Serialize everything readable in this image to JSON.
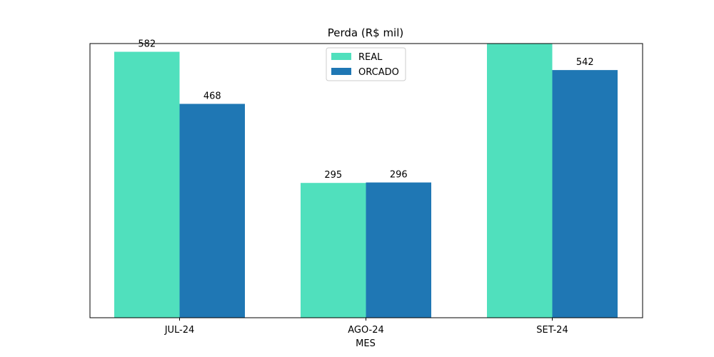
{
  "chart_data": {
    "type": "bar",
    "title": "Perda (R$ mil)",
    "xlabel": "MES",
    "ylabel": "",
    "categories": [
      "JUL-24",
      "AGO-24",
      "SET-24"
    ],
    "series": [
      {
        "name": "REAL",
        "values": [
          582,
          295,
          630
        ],
        "labels": [
          "582",
          "295",
          ""
        ],
        "color": "#50e0bd"
      },
      {
        "name": "ORCADO",
        "values": [
          468,
          296,
          542
        ],
        "labels": [
          "468",
          "296",
          "542"
        ],
        "color": "#1f77b4"
      }
    ],
    "ylim": [
      0,
      600
    ],
    "y_axis_visible": false,
    "grid": false,
    "legend_position": "top-center"
  }
}
